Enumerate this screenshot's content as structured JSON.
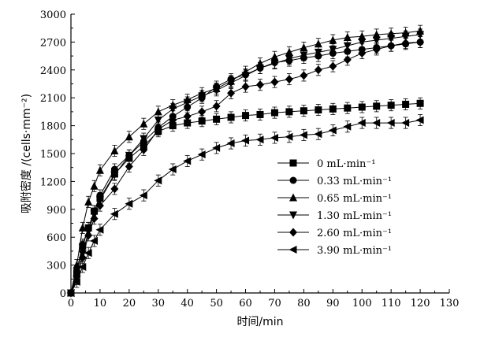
{
  "chart_data": {
    "type": "line",
    "title": "",
    "xlabel": "时间/min",
    "ylabel": "吸附密度 /(cells·mm⁻²)",
    "xlim": [
      0,
      130
    ],
    "ylim": [
      0,
      3000
    ],
    "xticks": [
      0,
      10,
      20,
      30,
      40,
      50,
      60,
      70,
      80,
      90,
      100,
      110,
      120,
      130
    ],
    "yticks": [
      0,
      300,
      600,
      900,
      1200,
      1500,
      1800,
      2100,
      2400,
      2700,
      3000
    ],
    "legend_position": "center-right",
    "error_bar": 60,
    "series": [
      {
        "name": "0  mL·min⁻¹",
        "marker": "square",
        "x": [
          0,
          2,
          4,
          6,
          8,
          10,
          15,
          20,
          25,
          30,
          35,
          40,
          45,
          50,
          55,
          60,
          65,
          70,
          75,
          80,
          85,
          90,
          95,
          100,
          105,
          110,
          115,
          120
        ],
        "values": [
          0,
          200,
          500,
          700,
          880,
          1020,
          1280,
          1450,
          1580,
          1740,
          1800,
          1830,
          1850,
          1870,
          1890,
          1910,
          1920,
          1940,
          1950,
          1960,
          1970,
          1980,
          1990,
          2000,
          2010,
          2020,
          2030,
          2040
        ]
      },
      {
        "name": "0.33  mL·min⁻¹",
        "marker": "circle",
        "x": [
          0,
          2,
          4,
          6,
          8,
          10,
          15,
          20,
          25,
          30,
          35,
          40,
          45,
          50,
          55,
          60,
          65,
          70,
          75,
          80,
          85,
          90,
          95,
          100,
          105,
          110,
          115,
          120
        ],
        "values": [
          0,
          240,
          520,
          700,
          880,
          1050,
          1330,
          1480,
          1630,
          1780,
          1900,
          2000,
          2100,
          2220,
          2300,
          2350,
          2420,
          2480,
          2500,
          2530,
          2550,
          2580,
          2600,
          2620,
          2640,
          2660,
          2680,
          2700
        ]
      },
      {
        "name": "0.65  mL·min⁻¹",
        "marker": "triangle-up",
        "x": [
          0,
          2,
          4,
          6,
          8,
          10,
          15,
          20,
          25,
          30,
          35,
          40,
          45,
          50,
          55,
          60,
          65,
          70,
          75,
          80,
          85,
          90,
          95,
          100,
          105,
          110,
          115,
          120
        ],
        "values": [
          0,
          300,
          700,
          980,
          1150,
          1320,
          1530,
          1680,
          1820,
          1950,
          2020,
          2080,
          2150,
          2200,
          2280,
          2380,
          2470,
          2540,
          2590,
          2640,
          2680,
          2720,
          2750,
          2760,
          2780,
          2790,
          2800,
          2820
        ]
      },
      {
        "name": "1.30  mL·min⁻¹",
        "marker": "triangle-down",
        "x": [
          0,
          2,
          4,
          6,
          8,
          10,
          15,
          20,
          25,
          30,
          35,
          40,
          45,
          50,
          55,
          60,
          65,
          70,
          75,
          80,
          85,
          90,
          95,
          100,
          105,
          110,
          115,
          120
        ],
        "values": [
          0,
          150,
          420,
          660,
          850,
          1000,
          1270,
          1480,
          1660,
          1860,
          1980,
          2050,
          2120,
          2180,
          2260,
          2340,
          2420,
          2470,
          2520,
          2560,
          2590,
          2620,
          2660,
          2700,
          2720,
          2740,
          2760,
          2780
        ]
      },
      {
        "name": "2.60  mL·min⁻¹",
        "marker": "diamond",
        "x": [
          0,
          2,
          4,
          6,
          8,
          10,
          15,
          20,
          25,
          30,
          35,
          40,
          45,
          50,
          55,
          60,
          65,
          70,
          75,
          80,
          85,
          90,
          95,
          100,
          105,
          110,
          115,
          120
        ],
        "values": [
          0,
          180,
          380,
          620,
          800,
          940,
          1120,
          1360,
          1540,
          1760,
          1860,
          1900,
          1950,
          2010,
          2150,
          2220,
          2240,
          2270,
          2300,
          2340,
          2400,
          2440,
          2510,
          2580,
          2620,
          2660,
          2690,
          2700
        ]
      },
      {
        "name": "3.90  mL·min⁻¹",
        "marker": "triangle-left",
        "x": [
          0,
          2,
          4,
          6,
          8,
          10,
          15,
          20,
          25,
          30,
          35,
          40,
          45,
          50,
          55,
          60,
          65,
          70,
          75,
          80,
          85,
          90,
          95,
          100,
          105,
          110,
          115,
          120
        ],
        "values": [
          0,
          120,
          280,
          430,
          560,
          680,
          850,
          960,
          1050,
          1210,
          1330,
          1420,
          1490,
          1560,
          1610,
          1640,
          1650,
          1670,
          1680,
          1700,
          1710,
          1750,
          1790,
          1830,
          1830,
          1830,
          1830,
          1860
        ]
      }
    ]
  }
}
